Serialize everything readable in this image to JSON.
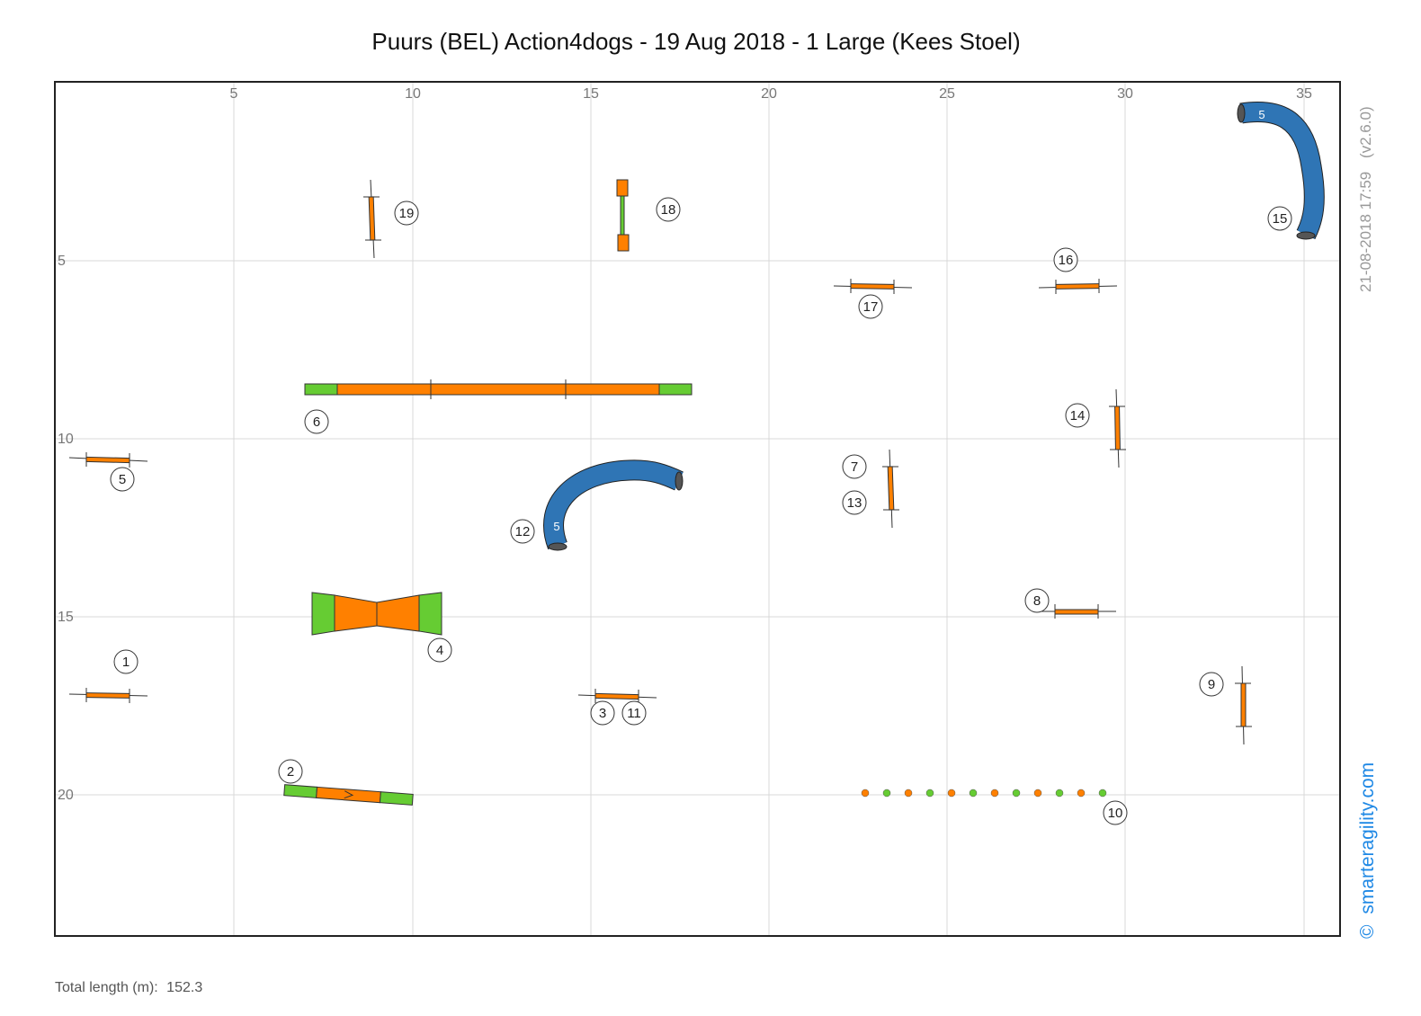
{
  "title": "Puurs (BEL) Action4dogs - 19 Aug 2018 - 1 Large (Kees Stoel)",
  "timestamp": "21-08-2018 17:59",
  "version": "(v2.6.0)",
  "copyright_symbol": "©",
  "brand": "smarteragility.com",
  "footer": {
    "label": "Total length (m):",
    "value": "152.3"
  },
  "axes": {
    "x_ticks": [
      "5",
      "10",
      "15",
      "20",
      "25",
      "30",
      "35"
    ],
    "y_ticks": [
      "5",
      "10",
      "15",
      "20"
    ]
  },
  "obstacle_labels": {
    "n1": "1",
    "n2": "2",
    "n3": "3",
    "n4": "4",
    "n5": "5",
    "n6": "6",
    "n7": "7",
    "n8": "8",
    "n9": "9",
    "n10": "10",
    "n11": "11",
    "n12": "12",
    "n13": "13",
    "n14": "14",
    "n15": "15",
    "n16": "16",
    "n17": "17",
    "n18": "18",
    "n19": "19",
    "tunnel_a": "5",
    "tunnel_b": "5"
  },
  "colors": {
    "orange": "#ff8000",
    "green": "#66cc33",
    "tunnel_blue": "#2f75b5",
    "tunnel_end": "#555555",
    "grid": "#d9d9d9",
    "brand_blue": "#1e88e5"
  }
}
